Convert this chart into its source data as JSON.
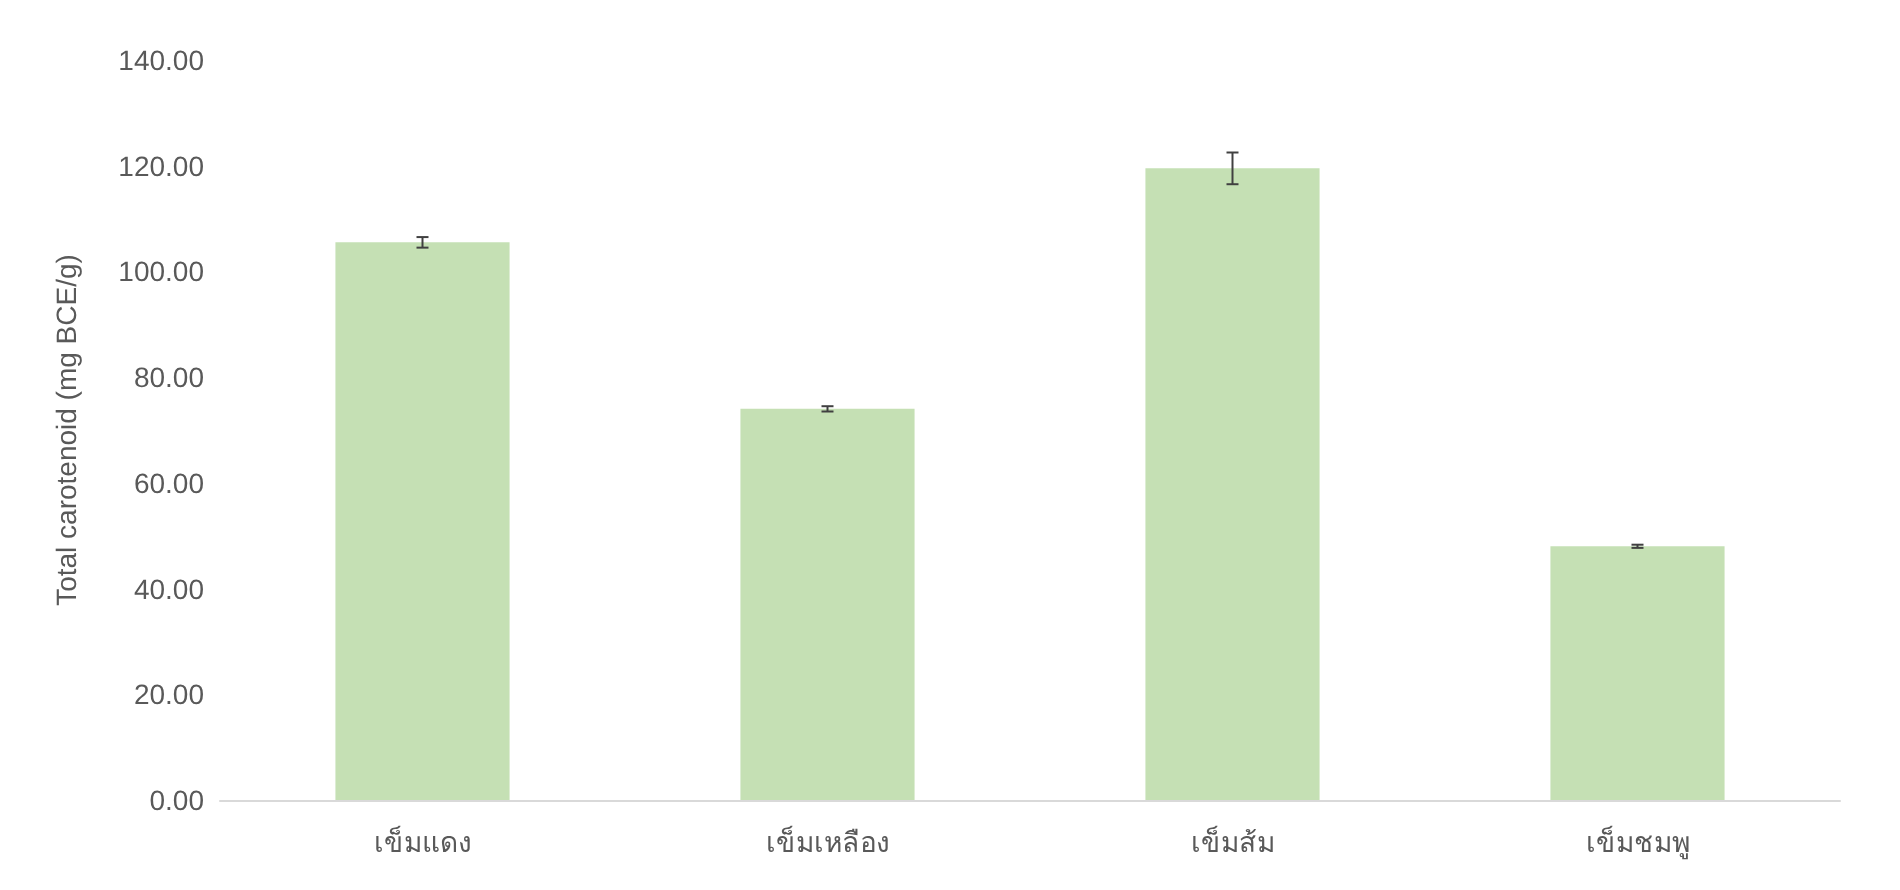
{
  "chart_data": {
    "type": "bar",
    "ylabel": "Total carotenoid (mg BCE/g)",
    "categories": [
      "เข็มแดง",
      "เข็มเหลือง",
      "เข็มส้ม",
      "เข็มชมพู"
    ],
    "values": [
      105.5,
      74,
      119.5,
      48
    ],
    "errors": [
      1,
      0.5,
      3,
      0.3
    ],
    "color": "#c5e0b4",
    "ylim": [
      0,
      140
    ],
    "yticks": [
      {
        "value": 0,
        "label": "0.00"
      },
      {
        "value": 20,
        "label": "20.00"
      },
      {
        "value": 40,
        "label": "40.00"
      },
      {
        "value": 60,
        "label": "60.00"
      },
      {
        "value": 80,
        "label": "80.00"
      },
      {
        "value": 100,
        "label": "100.00"
      },
      {
        "value": 120,
        "label": "120.00"
      },
      {
        "value": 140,
        "label": "140.00"
      }
    ],
    "grid": false
  }
}
